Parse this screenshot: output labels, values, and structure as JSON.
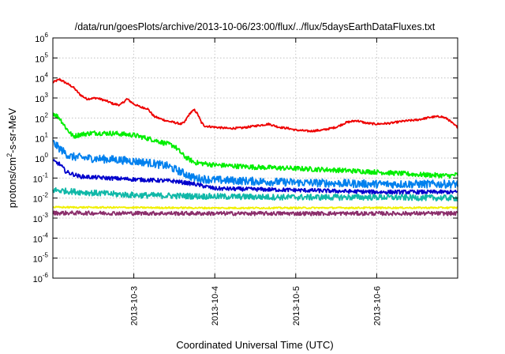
{
  "chart_data": {
    "type": "line",
    "title": "/data/run/goesPlots/archive/2013-10-06/23:00/flux/../flux/5daysEarthDataFluxes.txt",
    "xlabel": "Coordinated Universal Time (UTC)",
    "ylabel_main": "protons/cm",
    "ylabel_sup": "2",
    "ylabel_rest": "-s-sr-MeV",
    "y_scale": "log",
    "ylim": [
      1e-06,
      1000000.0
    ],
    "y_ticks": [
      {
        "base": "10",
        "exp": "-6",
        "value": 1e-06
      },
      {
        "base": "10",
        "exp": "-5",
        "value": 1e-05
      },
      {
        "base": "10",
        "exp": "-4",
        "value": 0.0001
      },
      {
        "base": "10",
        "exp": "-3",
        "value": 0.001
      },
      {
        "base": "10",
        "exp": "-2",
        "value": 0.01
      },
      {
        "base": "10",
        "exp": "-1",
        "value": 0.1
      },
      {
        "base": "10",
        "exp": "0",
        "value": 1
      },
      {
        "base": "10",
        "exp": "1",
        "value": 10
      },
      {
        "base": "10",
        "exp": "2",
        "value": 100
      },
      {
        "base": "10",
        "exp": "3",
        "value": 1000
      },
      {
        "base": "10",
        "exp": "4",
        "value": 10000
      },
      {
        "base": "10",
        "exp": "5",
        "value": 100000
      },
      {
        "base": "10",
        "exp": "6",
        "value": 1000000
      }
    ],
    "xlim": [
      "2013-10-02T00:00",
      "2013-10-07T00:00"
    ],
    "x_ticks": [
      "2013-10-3",
      "2013-10-4",
      "2013-10-5",
      "2013-10-6"
    ],
    "x_tick_dates": [
      "2013-10-03T00:00",
      "2013-10-04T00:00",
      "2013-10-05T00:00",
      "2013-10-06T00:00"
    ],
    "grid": true,
    "legend": "none",
    "series": [
      {
        "color": "#ee0000",
        "noise": 0.05,
        "points": [
          [
            "2013-10-02T00:00",
            6000
          ],
          [
            "2013-10-02T02:00",
            8500
          ],
          [
            "2013-10-02T04:00",
            5500
          ],
          [
            "2013-10-02T06:00",
            3500
          ],
          [
            "2013-10-02T08:00",
            1500
          ],
          [
            "2013-10-02T10:00",
            900
          ],
          [
            "2013-10-02T13:00",
            1000
          ],
          [
            "2013-10-02T16:00",
            700
          ],
          [
            "2013-10-02T18:00",
            500
          ],
          [
            "2013-10-02T20:00",
            450
          ],
          [
            "2013-10-02T22:00",
            900
          ],
          [
            "2013-10-03T00:00",
            500
          ],
          [
            "2013-10-03T02:00",
            350
          ],
          [
            "2013-10-03T04:00",
            300
          ],
          [
            "2013-10-03T06:00",
            120
          ],
          [
            "2013-10-03T08:00",
            90
          ],
          [
            "2013-10-03T10:00",
            70
          ],
          [
            "2013-10-03T12:00",
            60
          ],
          [
            "2013-10-03T14:00",
            50
          ],
          [
            "2013-10-03T15:00",
            60
          ],
          [
            "2013-10-03T16:00",
            120
          ],
          [
            "2013-10-03T17:00",
            200
          ],
          [
            "2013-10-03T18:00",
            250
          ],
          [
            "2013-10-03T19:00",
            150
          ],
          [
            "2013-10-03T20:00",
            60
          ],
          [
            "2013-10-03T21:00",
            40
          ],
          [
            "2013-10-04T00:00",
            35
          ],
          [
            "2013-10-04T04:00",
            30
          ],
          [
            "2013-10-04T08:00",
            32
          ],
          [
            "2013-10-04T12:00",
            40
          ],
          [
            "2013-10-04T16:00",
            50
          ],
          [
            "2013-10-04T19:00",
            35
          ],
          [
            "2013-10-04T22:00",
            30
          ],
          [
            "2013-10-05T00:00",
            25
          ],
          [
            "2013-10-05T04:00",
            22
          ],
          [
            "2013-10-05T08:00",
            25
          ],
          [
            "2013-10-05T12:00",
            35
          ],
          [
            "2013-10-05T15:00",
            60
          ],
          [
            "2013-10-05T18:00",
            75
          ],
          [
            "2013-10-05T21:00",
            55
          ],
          [
            "2013-10-06T00:00",
            50
          ],
          [
            "2013-10-06T04:00",
            55
          ],
          [
            "2013-10-06T08:00",
            70
          ],
          [
            "2013-10-06T12:00",
            80
          ],
          [
            "2013-10-06T16:00",
            110
          ],
          [
            "2013-10-06T19:00",
            120
          ],
          [
            "2013-10-06T21:00",
            90
          ],
          [
            "2013-10-06T23:00",
            45
          ],
          [
            "2013-10-07T00:00",
            35
          ]
        ]
      },
      {
        "color": "#00ee00",
        "noise": 0.12,
        "points": [
          [
            "2013-10-02T00:00",
            180
          ],
          [
            "2013-10-02T02:00",
            100
          ],
          [
            "2013-10-02T04:00",
            30
          ],
          [
            "2013-10-02T06:00",
            12
          ],
          [
            "2013-10-02T08:00",
            15
          ],
          [
            "2013-10-02T12:00",
            18
          ],
          [
            "2013-10-02T18:00",
            17
          ],
          [
            "2013-10-03T00:00",
            14
          ],
          [
            "2013-10-03T06:00",
            8
          ],
          [
            "2013-10-03T12:00",
            4
          ],
          [
            "2013-10-03T15:00",
            1.2
          ],
          [
            "2013-10-03T18:00",
            0.6
          ],
          [
            "2013-10-04T00:00",
            0.45
          ],
          [
            "2013-10-04T12:00",
            0.35
          ],
          [
            "2013-10-05T00:00",
            0.3
          ],
          [
            "2013-10-05T12:00",
            0.25
          ],
          [
            "2013-10-06T00:00",
            0.2
          ],
          [
            "2013-10-06T12:00",
            0.15
          ],
          [
            "2013-10-06T22:00",
            0.13
          ],
          [
            "2013-10-07T00:00",
            0.15
          ]
        ]
      },
      {
        "color": "#0080ee",
        "noise": 0.2,
        "points": [
          [
            "2013-10-02T00:00",
            6
          ],
          [
            "2013-10-02T02:00",
            3
          ],
          [
            "2013-10-02T05:00",
            1.2
          ],
          [
            "2013-10-02T10:00",
            1.0
          ],
          [
            "2013-10-02T20:00",
            0.8
          ],
          [
            "2013-10-03T04:00",
            0.6
          ],
          [
            "2013-10-03T10:00",
            0.4
          ],
          [
            "2013-10-03T14:00",
            0.2
          ],
          [
            "2013-10-03T18:00",
            0.1
          ],
          [
            "2013-10-04T00:00",
            0.08
          ],
          [
            "2013-10-05T00:00",
            0.06
          ],
          [
            "2013-10-06T00:00",
            0.05
          ],
          [
            "2013-10-07T00:00",
            0.05
          ]
        ]
      },
      {
        "color": "#0000cc",
        "noise": 0.1,
        "points": [
          [
            "2013-10-02T00:00",
            0.7
          ],
          [
            "2013-10-02T02:00",
            0.5
          ],
          [
            "2013-10-02T04:00",
            0.2
          ],
          [
            "2013-10-02T08:00",
            0.12
          ],
          [
            "2013-10-02T16:00",
            0.1
          ],
          [
            "2013-10-03T04:00",
            0.08
          ],
          [
            "2013-10-03T12:00",
            0.07
          ],
          [
            "2013-10-03T18:00",
            0.05
          ],
          [
            "2013-10-04T00:00",
            0.03
          ],
          [
            "2013-10-05T00:00",
            0.025
          ],
          [
            "2013-10-06T00:00",
            0.02
          ],
          [
            "2013-10-07T00:00",
            0.02
          ]
        ]
      },
      {
        "color": "#10b8a8",
        "noise": 0.15,
        "points": [
          [
            "2013-10-02T00:00",
            0.025
          ],
          [
            "2013-10-02T12:00",
            0.018
          ],
          [
            "2013-10-03T00:00",
            0.014
          ],
          [
            "2013-10-04T00:00",
            0.012
          ],
          [
            "2013-10-05T00:00",
            0.011
          ],
          [
            "2013-10-06T00:00",
            0.011
          ],
          [
            "2013-10-07T00:00",
            0.01
          ]
        ]
      },
      {
        "color": "#f0f000",
        "noise": 0.04,
        "points": [
          [
            "2013-10-02T00:00",
            0.0035
          ],
          [
            "2013-10-04T00:00",
            0.0032
          ],
          [
            "2013-10-07T00:00",
            0.0033
          ]
        ]
      },
      {
        "color": "#8b2e6b",
        "noise": 0.1,
        "points": [
          [
            "2013-10-02T00:00",
            0.0018
          ],
          [
            "2013-10-04T00:00",
            0.0017
          ],
          [
            "2013-10-07T00:00",
            0.0017
          ]
        ]
      }
    ]
  }
}
